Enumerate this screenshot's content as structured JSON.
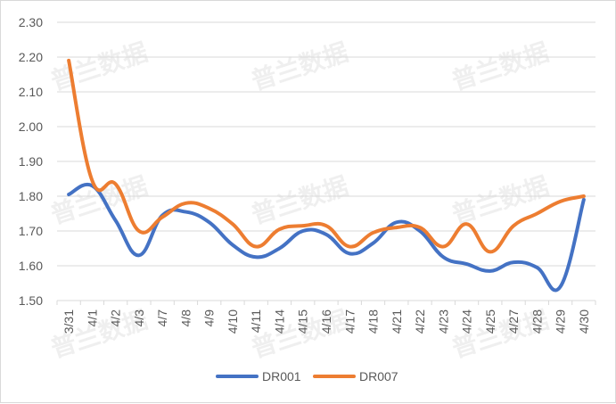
{
  "chart_data": {
    "type": "line",
    "categories": [
      "3/31",
      "4/1",
      "4/2",
      "4/3",
      "4/7",
      "4/8",
      "4/9",
      "4/10",
      "4/11",
      "4/14",
      "4/15",
      "4/16",
      "4/17",
      "4/18",
      "4/21",
      "4/22",
      "4/23",
      "4/24",
      "4/25",
      "4/27",
      "4/28",
      "4/29",
      "4/30"
    ],
    "series": [
      {
        "name": "DR001",
        "color": "#4472c4",
        "values": [
          1.805,
          1.83,
          1.73,
          1.63,
          1.745,
          1.755,
          1.725,
          1.66,
          1.625,
          1.65,
          1.7,
          1.69,
          1.635,
          1.665,
          1.725,
          1.7,
          1.625,
          1.605,
          1.585,
          1.61,
          1.595,
          1.54,
          1.79
        ]
      },
      {
        "name": "DR007",
        "color": "#ed7d31",
        "values": [
          2.19,
          1.845,
          1.835,
          1.7,
          1.74,
          1.78,
          1.765,
          1.72,
          1.655,
          1.705,
          1.715,
          1.715,
          1.655,
          1.695,
          1.71,
          1.71,
          1.655,
          1.72,
          1.64,
          1.715,
          1.75,
          1.785,
          1.8
        ]
      }
    ],
    "yticks": [
      "1.50",
      "1.60",
      "1.70",
      "1.80",
      "1.90",
      "2.00",
      "2.10",
      "2.20",
      "2.30"
    ],
    "ylim": [
      1.5,
      2.3
    ],
    "grid": true,
    "legend_position": "bottom",
    "watermark": "普兰数据"
  }
}
